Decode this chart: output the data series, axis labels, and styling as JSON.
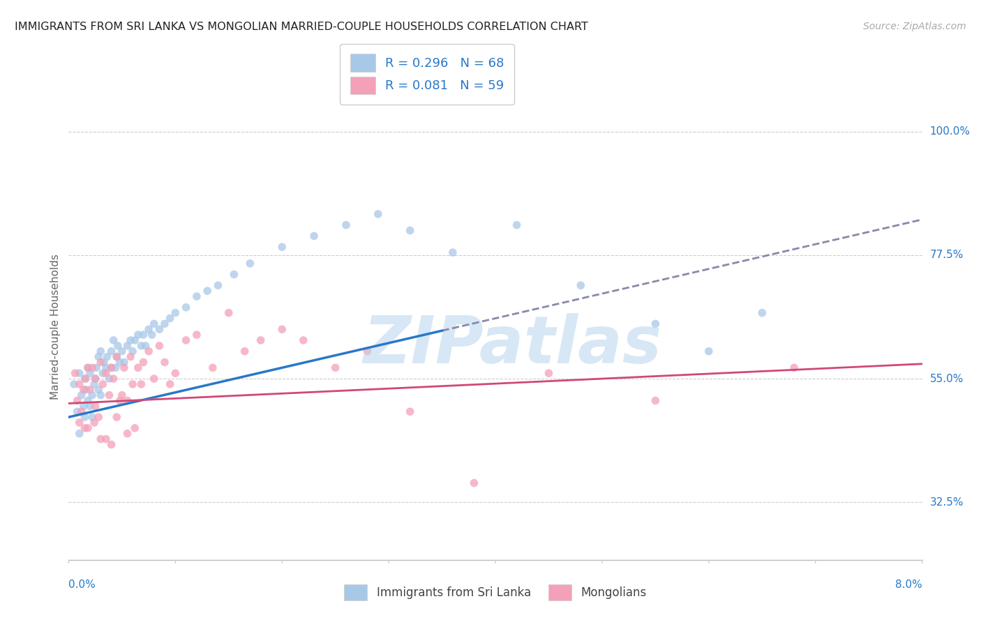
{
  "title": "IMMIGRANTS FROM SRI LANKA VS MONGOLIAN MARRIED-COUPLE HOUSEHOLDS CORRELATION CHART",
  "source": "Source: ZipAtlas.com",
  "ylabel": "Married-couple Households",
  "xlim": [
    0.0,
    8.0
  ],
  "ylim": [
    22.0,
    107.0
  ],
  "yticks": [
    32.5,
    55.0,
    77.5,
    100.0
  ],
  "ytick_labels": [
    "32.5%",
    "55.0%",
    "77.5%",
    "100.0%"
  ],
  "legend1_label": "R = 0.296   N = 68",
  "legend2_label": "R = 0.081   N = 59",
  "legend_xlabel": "Immigrants from Sri Lanka",
  "legend_ylabel": "Mongolians",
  "blue_color": "#a8c8e8",
  "pink_color": "#f4a0b8",
  "blue_line_color": "#2878c8",
  "pink_line_color": "#d04878",
  "text_color": "#2878c8",
  "watermark": "ZIPatlas",
  "blue_intercept": 48.0,
  "blue_slope": 4.5,
  "pink_intercept": 50.5,
  "pink_slope": 0.9,
  "blue_solid_end": 3.5,
  "blue_scatter_x": [
    0.05,
    0.08,
    0.1,
    0.1,
    0.12,
    0.14,
    0.15,
    0.15,
    0.16,
    0.18,
    0.18,
    0.2,
    0.2,
    0.22,
    0.22,
    0.24,
    0.25,
    0.26,
    0.28,
    0.28,
    0.3,
    0.3,
    0.32,
    0.33,
    0.35,
    0.36,
    0.38,
    0.4,
    0.4,
    0.42,
    0.44,
    0.45,
    0.46,
    0.48,
    0.5,
    0.52,
    0.55,
    0.58,
    0.6,
    0.62,
    0.65,
    0.68,
    0.7,
    0.72,
    0.75,
    0.78,
    0.8,
    0.85,
    0.9,
    0.95,
    1.0,
    1.1,
    1.2,
    1.3,
    1.4,
    1.55,
    1.7,
    2.0,
    2.3,
    2.6,
    2.9,
    3.2,
    3.6,
    4.2,
    4.8,
    5.5,
    6.0,
    6.5
  ],
  "blue_scatter_y": [
    54.0,
    49.0,
    56.0,
    45.0,
    52.0,
    50.0,
    48.0,
    55.0,
    53.0,
    51.0,
    57.0,
    50.0,
    56.0,
    52.0,
    48.0,
    54.0,
    55.0,
    57.0,
    53.0,
    59.0,
    52.0,
    60.0,
    56.0,
    58.0,
    57.0,
    59.0,
    55.0,
    60.0,
    57.0,
    62.0,
    57.0,
    59.0,
    61.0,
    58.0,
    60.0,
    58.0,
    61.0,
    62.0,
    60.0,
    62.0,
    63.0,
    61.0,
    63.0,
    61.0,
    64.0,
    63.0,
    65.0,
    64.0,
    65.0,
    66.0,
    67.0,
    68.0,
    70.0,
    71.0,
    72.0,
    74.0,
    76.0,
    79.0,
    81.0,
    83.0,
    85.0,
    82.0,
    78.0,
    83.0,
    72.0,
    65.0,
    60.0,
    67.0
  ],
  "pink_scatter_x": [
    0.06,
    0.08,
    0.1,
    0.1,
    0.12,
    0.14,
    0.16,
    0.18,
    0.18,
    0.2,
    0.22,
    0.24,
    0.25,
    0.28,
    0.3,
    0.3,
    0.32,
    0.35,
    0.38,
    0.4,
    0.4,
    0.42,
    0.45,
    0.48,
    0.5,
    0.52,
    0.55,
    0.58,
    0.6,
    0.62,
    0.65,
    0.68,
    0.7,
    0.75,
    0.8,
    0.85,
    0.9,
    0.95,
    1.0,
    1.1,
    1.2,
    1.35,
    1.5,
    1.65,
    1.8,
    2.0,
    2.2,
    2.5,
    2.8,
    3.2,
    3.8,
    4.5,
    5.5,
    6.8,
    0.15,
    0.25,
    0.35,
    0.45,
    0.55
  ],
  "pink_scatter_y": [
    56.0,
    51.0,
    54.0,
    47.0,
    49.0,
    53.0,
    55.0,
    46.0,
    57.0,
    53.0,
    57.0,
    47.0,
    55.0,
    48.0,
    58.0,
    44.0,
    54.0,
    56.0,
    52.0,
    57.0,
    43.0,
    55.0,
    59.0,
    51.0,
    52.0,
    57.0,
    51.0,
    59.0,
    54.0,
    46.0,
    57.0,
    54.0,
    58.0,
    60.0,
    55.0,
    61.0,
    58.0,
    54.0,
    56.0,
    62.0,
    63.0,
    57.0,
    67.0,
    60.0,
    62.0,
    64.0,
    62.0,
    57.0,
    60.0,
    49.0,
    36.0,
    56.0,
    51.0,
    57.0,
    46.0,
    50.0,
    44.0,
    48.0,
    45.0
  ]
}
